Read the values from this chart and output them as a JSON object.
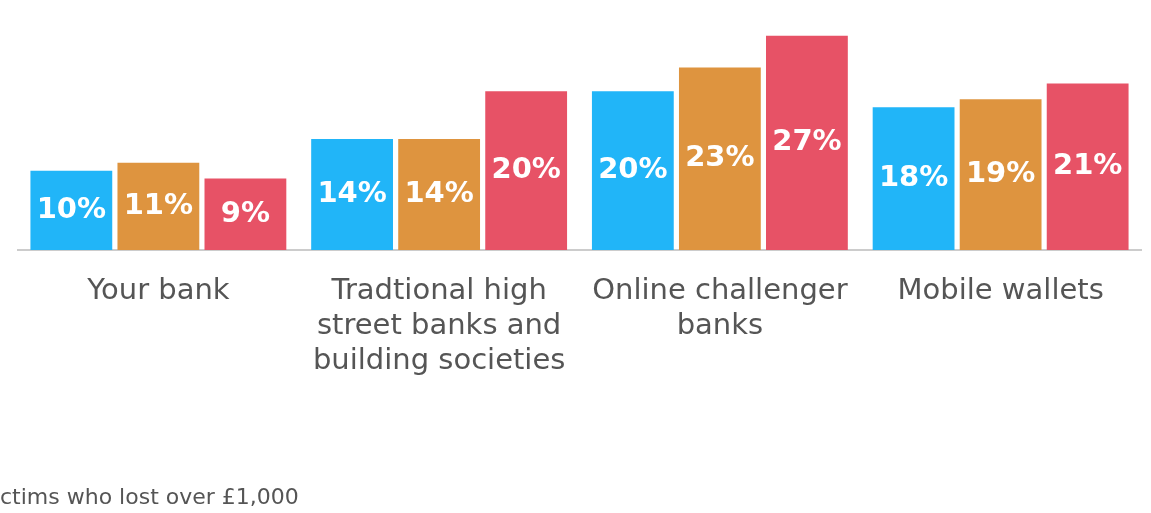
{
  "chart_data": {
    "type": "bar",
    "categories": [
      "Your bank",
      "Tradtional high street banks and building societies",
      "Online challenger banks",
      "Mobile wallets"
    ],
    "series": [
      {
        "color": "#21b5f8",
        "values": [
          10,
          14,
          20,
          18
        ],
        "value_labels": [
          "10%",
          "14%",
          "20%",
          "18%"
        ]
      },
      {
        "color": "#de943f",
        "values": [
          11,
          14,
          23,
          19
        ],
        "value_labels": [
          "11%",
          "14%",
          "23%",
          "19%"
        ]
      },
      {
        "color": "#e75266",
        "values": [
          9,
          20,
          27,
          21
        ],
        "value_labels": [
          "9%",
          "20%",
          "27%",
          "21%"
        ]
      }
    ],
    "grid": false,
    "legend": false,
    "annotations": [
      "ctims who lost over £1,000"
    ]
  }
}
